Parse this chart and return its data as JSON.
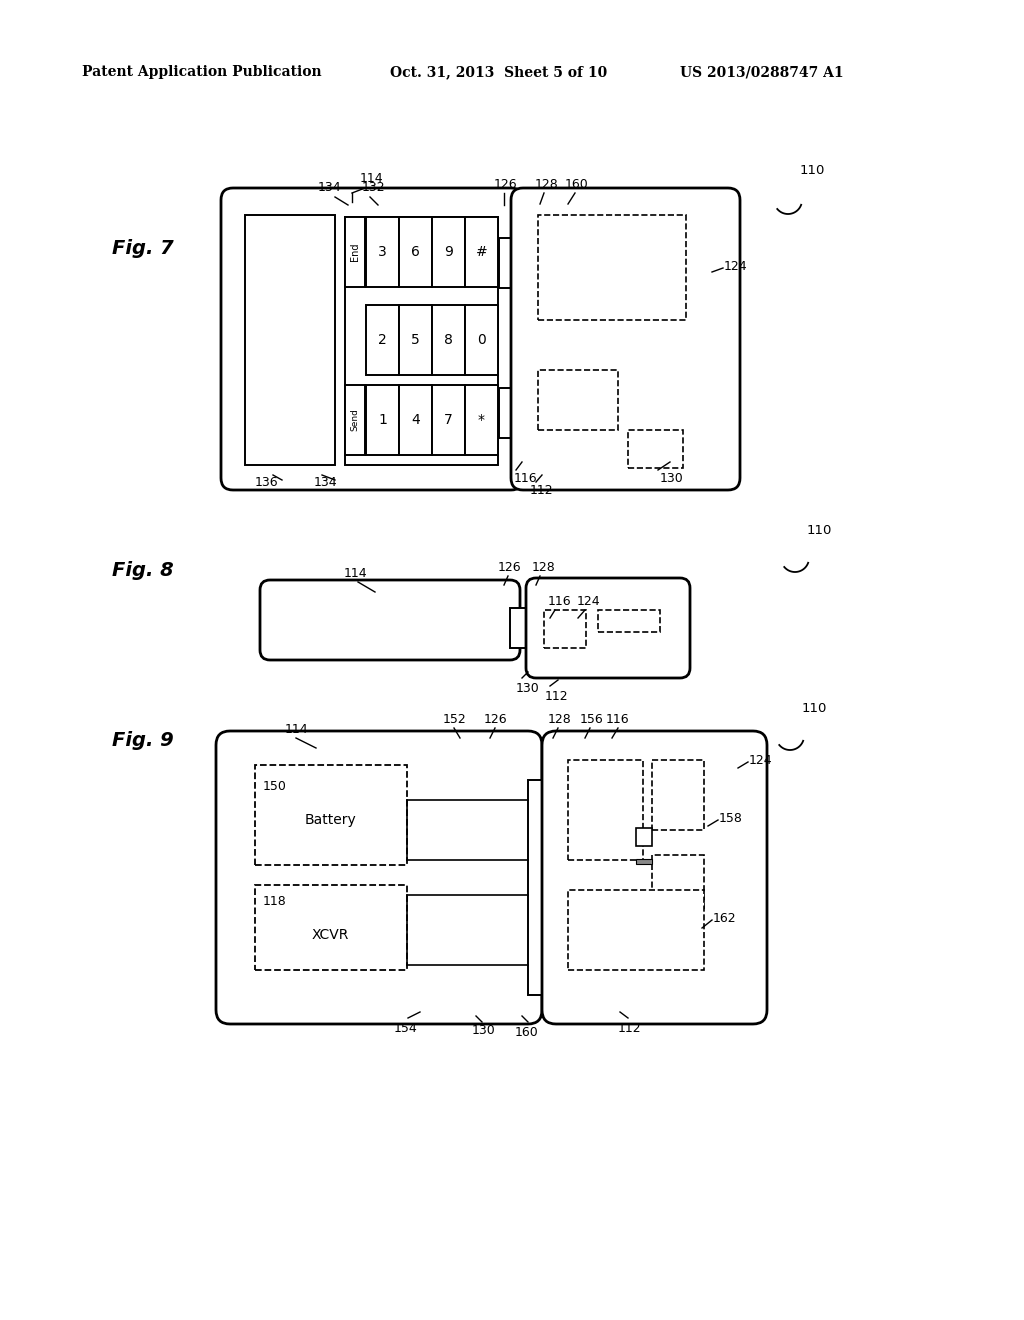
{
  "bg_color": "#ffffff",
  "header_left": "Patent Application Publication",
  "header_mid": "Oct. 31, 2013  Sheet 5 of 10",
  "header_right": "US 2013/0288747 A1"
}
